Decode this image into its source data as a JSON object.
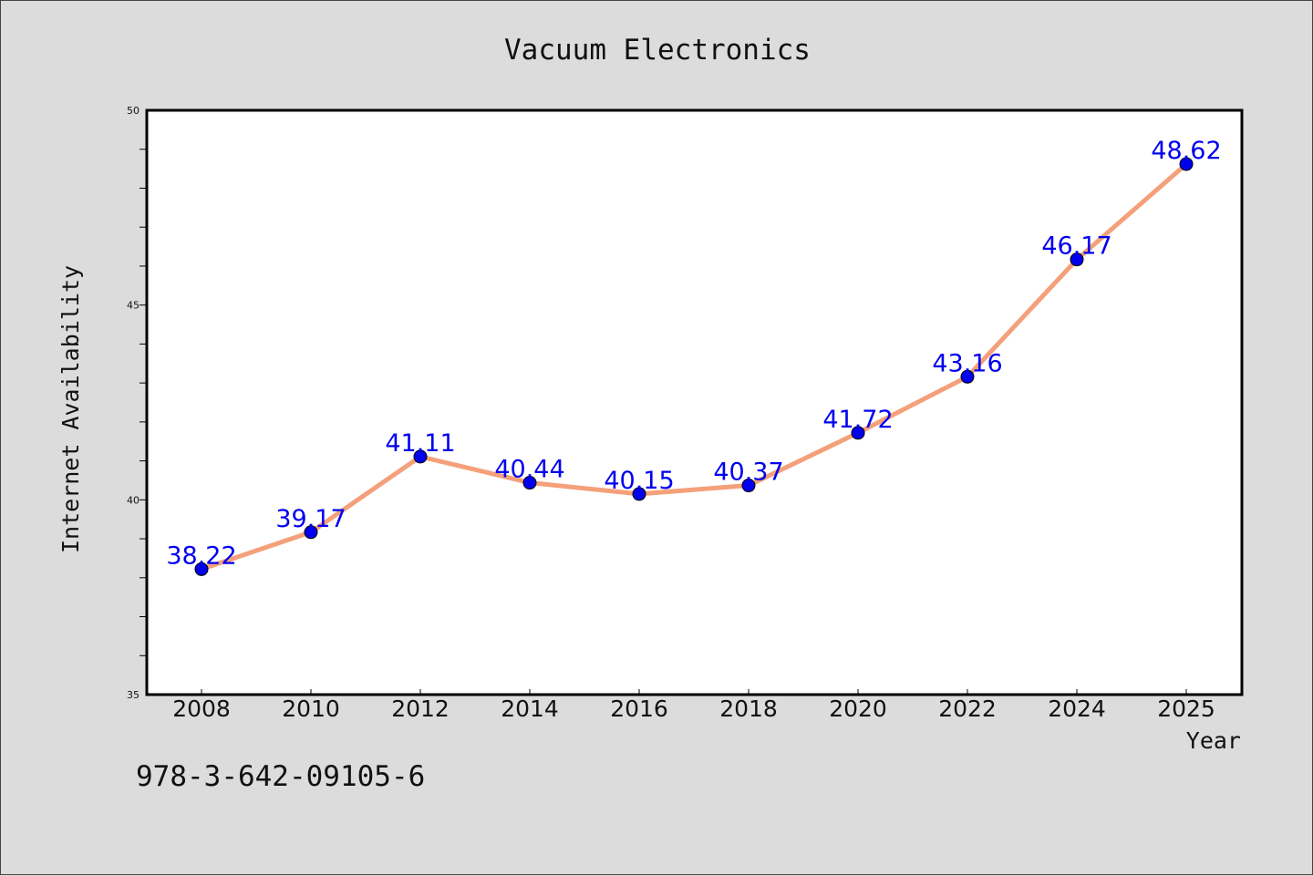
{
  "chart_data": {
    "type": "line",
    "title": "Vacuum Electronics",
    "xlabel": "Year",
    "ylabel": "Internet Availability",
    "ylim": [
      35,
      50
    ],
    "yticks": [
      "35",
      "40",
      "45",
      "50"
    ],
    "categories": [
      "2008",
      "2010",
      "2012",
      "2014",
      "2016",
      "2018",
      "2020",
      "2022",
      "2024",
      "2025"
    ],
    "series": [
      {
        "values": [
          38.22,
          39.17,
          41.11,
          40.44,
          40.15,
          40.37,
          41.72,
          43.16,
          46.17,
          48.62
        ],
        "labels": [
          "38.22",
          "39.17",
          "41.11",
          "40.44",
          "40.15",
          "40.37",
          "41.72",
          "43.16",
          "46.17",
          "48.62"
        ],
        "line_color": "#f4a07a",
        "marker_color": "#0000ee",
        "label_color": "#0000ee"
      }
    ],
    "grid": false,
    "legend": "none"
  },
  "caption": "978-3-642-09105-6"
}
